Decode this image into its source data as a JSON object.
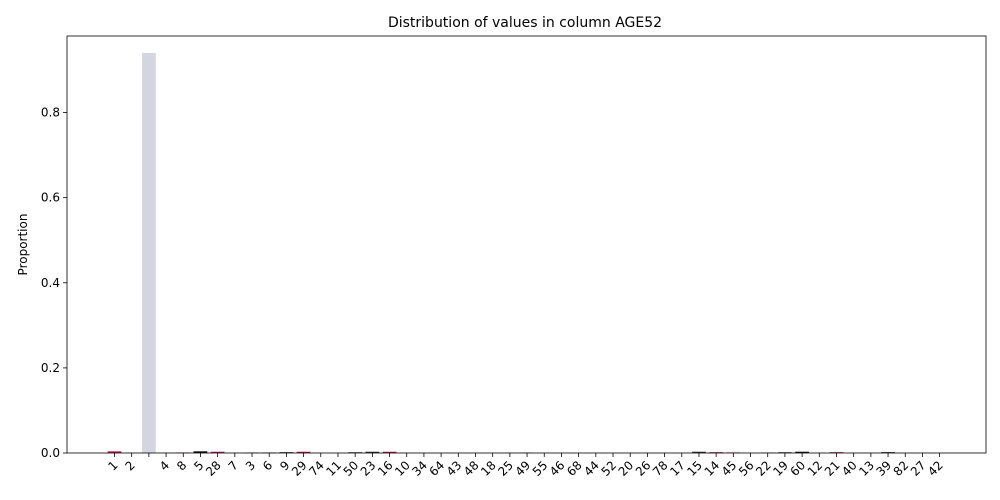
{
  "chart_data": {
    "type": "bar",
    "title": "Distribution of values in column AGE52",
    "xlabel": "",
    "ylabel": "Proportion",
    "ylim": [
      0,
      0.98
    ],
    "yticks": [
      "0.0",
      "0.2",
      "0.4",
      "0.6",
      "0.8"
    ],
    "grid": false,
    "legend": "none",
    "categories": [
      "1",
      "2",
      "",
      "4",
      "8",
      "5",
      "28",
      "7",
      "3",
      "6",
      "9",
      "29",
      "74",
      "11",
      "50",
      "23",
      "16",
      "10",
      "34",
      "64",
      "43",
      "48",
      "18",
      "25",
      "49",
      "55",
      "46",
      "68",
      "44",
      "52",
      "20",
      "26",
      "78",
      "17",
      "15",
      "14",
      "45",
      "56",
      "22",
      "19",
      "60",
      "12",
      "21",
      "40",
      "13",
      "39",
      "82",
      "27",
      "42"
    ],
    "values": [
      0.004,
      0.001,
      0.94,
      0.001,
      0.002,
      0.004,
      0.003,
      0.001,
      0.002,
      0.002,
      0.002,
      0.003,
      0.0005,
      0.0005,
      0.002,
      0.003,
      0.003,
      0.001,
      0.001,
      0.0005,
      0.0005,
      0.0005,
      0.0005,
      0.001,
      0.001,
      0.0005,
      0.0005,
      0.0005,
      0.0005,
      0.0005,
      0.0005,
      0.0005,
      0.0005,
      0.0005,
      0.003,
      0.002,
      0.003,
      0.0005,
      0.001,
      0.002,
      0.003,
      0.001,
      0.002,
      0.001,
      0.001,
      0.002,
      0.0005,
      0.0005,
      0.0005
    ],
    "colors": [
      "#c2185b",
      "#f48fb1",
      "#d3d6de",
      "#d3d6de",
      "#e6bcc9",
      "#111111",
      "#c2185b",
      "#e8c9d3",
      "#d3d6de",
      "#bfc3ce",
      "#333333",
      "#c2185b",
      "#e0c0cc",
      "#d3d6de",
      "#555555",
      "#333333",
      "#c2185b",
      "#f3b8cb",
      "#d3d6de",
      "#d3d6de",
      "#e8c9d3",
      "#d3d6de",
      "#d3d6de",
      "#e6bcc9",
      "#c2185b",
      "#d3d6de",
      "#d3d6de",
      "#d3d6de",
      "#d3d6de",
      "#d3d6de",
      "#d3d6de",
      "#d3d6de",
      "#d3d6de",
      "#d3d6de",
      "#333333",
      "#c2185b",
      "#e8c9d3",
      "#d3d6de",
      "#c2185b",
      "#555555",
      "#111111",
      "#f3b8cb",
      "#c2185b",
      "#d3d6de",
      "#d3d6de",
      "#111111",
      "#d3d6de",
      "#d3d6de",
      "#d3d6de"
    ]
  }
}
